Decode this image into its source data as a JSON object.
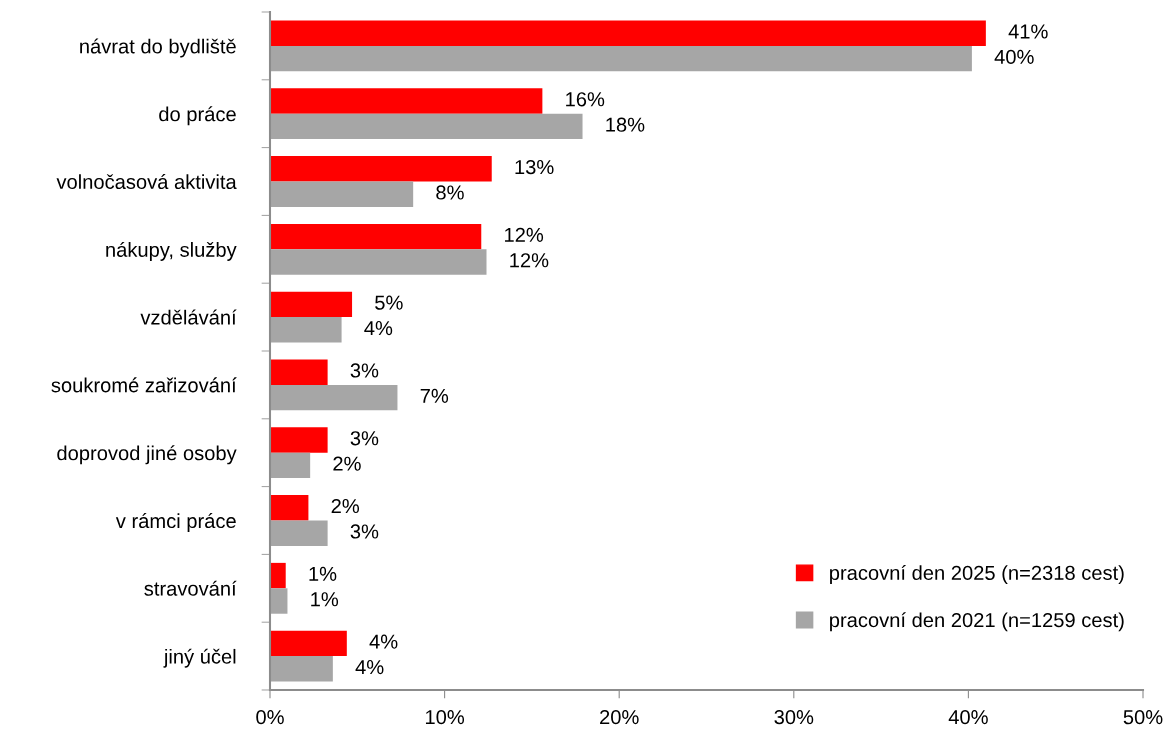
{
  "chart_data": {
    "type": "bar",
    "orientation": "horizontal",
    "categories": [
      "návrat do bydliště",
      "do práce",
      "volnočasová aktivita",
      "nákupy, služby",
      "vzdělávání",
      "soukromé zařizování",
      "doprovod jiné osoby",
      "v rámci práce",
      "stravování",
      "jiný účel"
    ],
    "series": [
      {
        "name": "pracovní den 2025 (n=2318 cest)",
        "color": "#ff0000",
        "values": [
          41.0,
          15.6,
          12.7,
          12.1,
          4.7,
          3.3,
          3.3,
          2.2,
          0.9,
          4.4
        ],
        "value_labels": [
          "41%",
          "16%",
          "13%",
          "12%",
          "5%",
          "3%",
          "3%",
          "2%",
          "1%",
          "4%"
        ]
      },
      {
        "name": "pracovní den 2021 (n=1259 cest)",
        "color": "#a6a6a6",
        "values": [
          40.2,
          17.9,
          8.2,
          12.4,
          4.1,
          7.3,
          2.3,
          3.3,
          1.0,
          3.6
        ],
        "value_labels": [
          "40%",
          "18%",
          "8%",
          "12%",
          "4%",
          "7%",
          "2%",
          "3%",
          "1%",
          "4%"
        ]
      }
    ],
    "xlim": [
      0,
      50
    ],
    "xticks": [
      {
        "value": 0,
        "label": "0%"
      },
      {
        "value": 10,
        "label": "10%"
      },
      {
        "value": 20,
        "label": "20%"
      },
      {
        "value": 30,
        "label": "30%"
      },
      {
        "value": 40,
        "label": "40%"
      },
      {
        "value": 50,
        "label": "50%"
      }
    ],
    "grid": false,
    "legend": "bottom right"
  }
}
